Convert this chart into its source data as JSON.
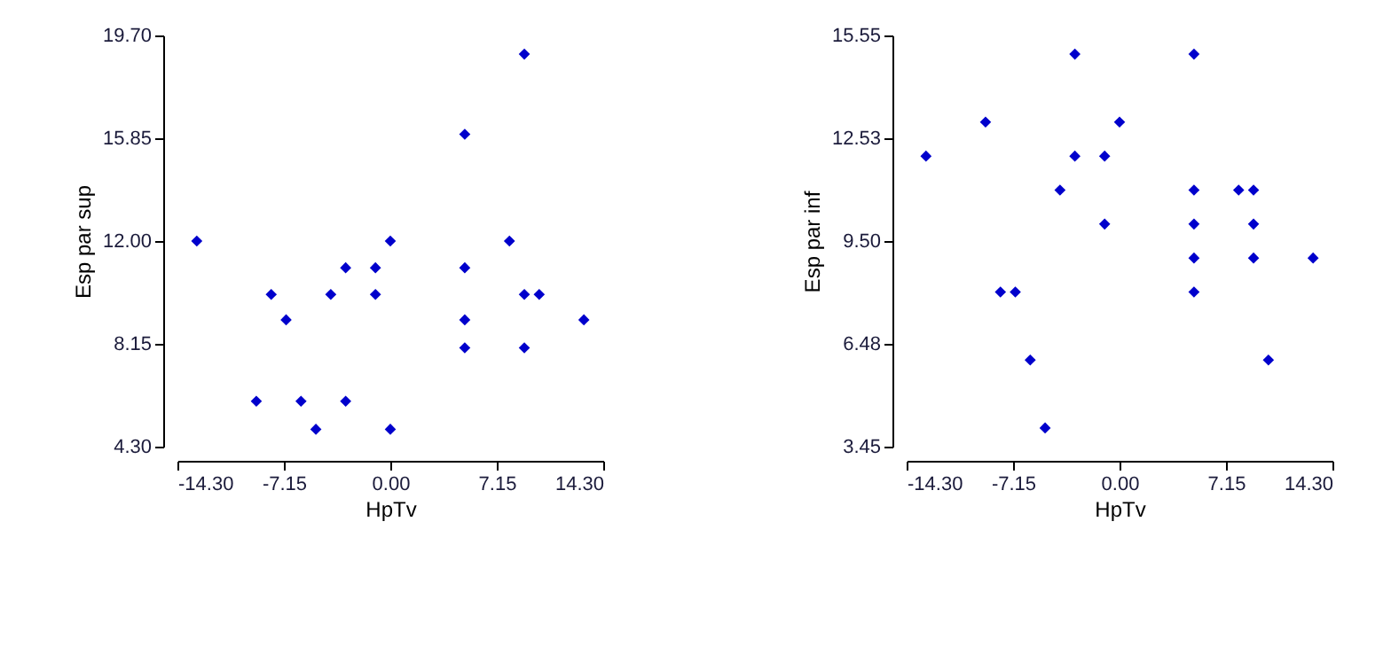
{
  "chart_data": [
    {
      "type": "scatter",
      "xlabel": "HpTv",
      "ylabel": "Esp par sup",
      "marker": "diamond",
      "grid": false,
      "legend": false,
      "x": [
        -13,
        -8,
        -7,
        -9,
        -6,
        -5,
        -3,
        -3,
        -4,
        -1,
        -1,
        0,
        0,
        5,
        5,
        5,
        5,
        8,
        9,
        9,
        10,
        9,
        13
      ],
      "series": [
        {
          "color": "#0000cc",
          "values": [
            12,
            10,
            9.05,
            6,
            6,
            4.95,
            6,
            11,
            10,
            11,
            10,
            12,
            4.95,
            16,
            11,
            9.05,
            8,
            12,
            19,
            10,
            10,
            8,
            9.05
          ]
        }
      ],
      "xlim": [
        -14.3,
        14.3
      ],
      "xticks": [
        {
          "value": -14.3,
          "label": "-14.30"
        },
        {
          "value": -7.15,
          "label": "-7.15"
        },
        {
          "value": 0,
          "label": "0.00"
        },
        {
          "value": 7.15,
          "label": "7.15"
        },
        {
          "value": 14.3,
          "label": "14.30"
        }
      ],
      "ylim": [
        4.3,
        19.7
      ],
      "yticks": [
        {
          "value": 4.3,
          "label": "4.30"
        },
        {
          "value": 8.15,
          "label": "8.15"
        },
        {
          "value": 12,
          "label": "12.00"
        },
        {
          "value": 15.85,
          "label": "15.85"
        },
        {
          "value": 19.7,
          "label": "19.70"
        }
      ]
    },
    {
      "type": "scatter",
      "xlabel": "HpTv",
      "ylabel": "Esp par inf",
      "marker": "diamond",
      "grid": false,
      "legend": false,
      "x": [
        -3,
        5,
        -9,
        0,
        -13,
        -3,
        -1,
        -4,
        5,
        8,
        9,
        -1,
        5,
        9,
        5,
        9,
        13,
        -8,
        -7,
        5,
        -6,
        10,
        -5
      ],
      "series": [
        {
          "color": "#0000cc",
          "values": [
            15,
            15,
            13,
            13,
            12,
            12,
            12,
            11,
            11,
            11,
            11,
            10,
            10,
            10,
            9,
            9,
            9,
            8,
            8,
            8,
            6,
            6,
            4
          ]
        }
      ],
      "xlim": [
        -14.3,
        14.3
      ],
      "xticks": [
        {
          "value": -14.3,
          "label": "-14.30"
        },
        {
          "value": -7.15,
          "label": "-7.15"
        },
        {
          "value": 0,
          "label": "0.00"
        },
        {
          "value": 7.15,
          "label": "7.15"
        },
        {
          "value": 14.3,
          "label": "14.30"
        }
      ],
      "ylim": [
        3.45,
        15.55
      ],
      "yticks": [
        {
          "value": 3.45,
          "label": "3.45"
        },
        {
          "value": 6.48,
          "label": "6.48"
        },
        {
          "value": 9.5,
          "label": "9.50"
        },
        {
          "value": 12.53,
          "label": "12.53"
        },
        {
          "value": 15.55,
          "label": "15.55"
        }
      ]
    }
  ]
}
